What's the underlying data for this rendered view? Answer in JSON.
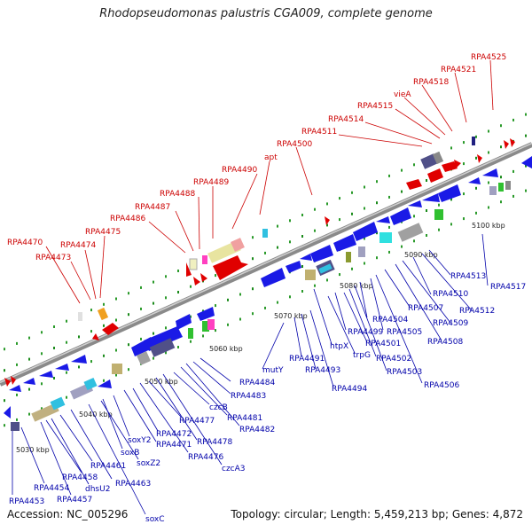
{
  "title": "Rhodopseudomonas palustris CGA009, complete genome",
  "footer": {
    "accession": "Accession: NC_005296",
    "topology": "Topology: circular; Length: 5,459,213 bp; Genes: 4,872"
  },
  "colors": {
    "backbone": "#8a8a8a",
    "forward_gene": "#e00000",
    "reverse_gene": "#1a1ae6",
    "forward_label": "#cc0000",
    "reverse_label": "#0000aa",
    "tick": "#1a8a1a"
  },
  "kbp_labels": [
    "5030 kbp",
    "5040 kbp",
    "5050 kbp",
    "5060 kbp",
    "5070 kbp",
    "5080 kbp",
    "5090 kbp",
    "5100 kbp"
  ],
  "forward_labels": [
    "RPA4470",
    "RPA4473",
    "RPA4474",
    "RPA4475",
    "RPA4486",
    "RPA4487",
    "RPA4488",
    "RPA4489",
    "RPA4490",
    "apt",
    "RPA4500",
    "RPA4511",
    "RPA4514",
    "RPA4515",
    "vieA",
    "RPA4518",
    "RPA4521",
    "RPA4525"
  ],
  "reverse_labels": [
    "RPA4453",
    "RPA4454",
    "RPA4457",
    "RPA4458",
    "dhsU2",
    "RPA4461",
    "RPA4463",
    "soxC",
    "soxZ2",
    "soxB",
    "soxY2",
    "RPA4471",
    "RPA4472",
    "RPA4476",
    "RPA4477",
    "RPA4478",
    "czcA3",
    "czcB",
    "RPA4481",
    "RPA4482",
    "RPA4483",
    "RPA4484",
    "mutY",
    "RPA4491",
    "RPA4493",
    "RPA4494",
    "htpX",
    "trpG",
    "RPA4499",
    "RPA4501",
    "RPA4502",
    "RPA4503",
    "RPA4504",
    "RPA4505",
    "RPA4506",
    "RPA4507",
    "RPA4508",
    "RPA4509",
    "RPA4510",
    "RPA4512",
    "RPA4513",
    "RPA4517"
  ]
}
